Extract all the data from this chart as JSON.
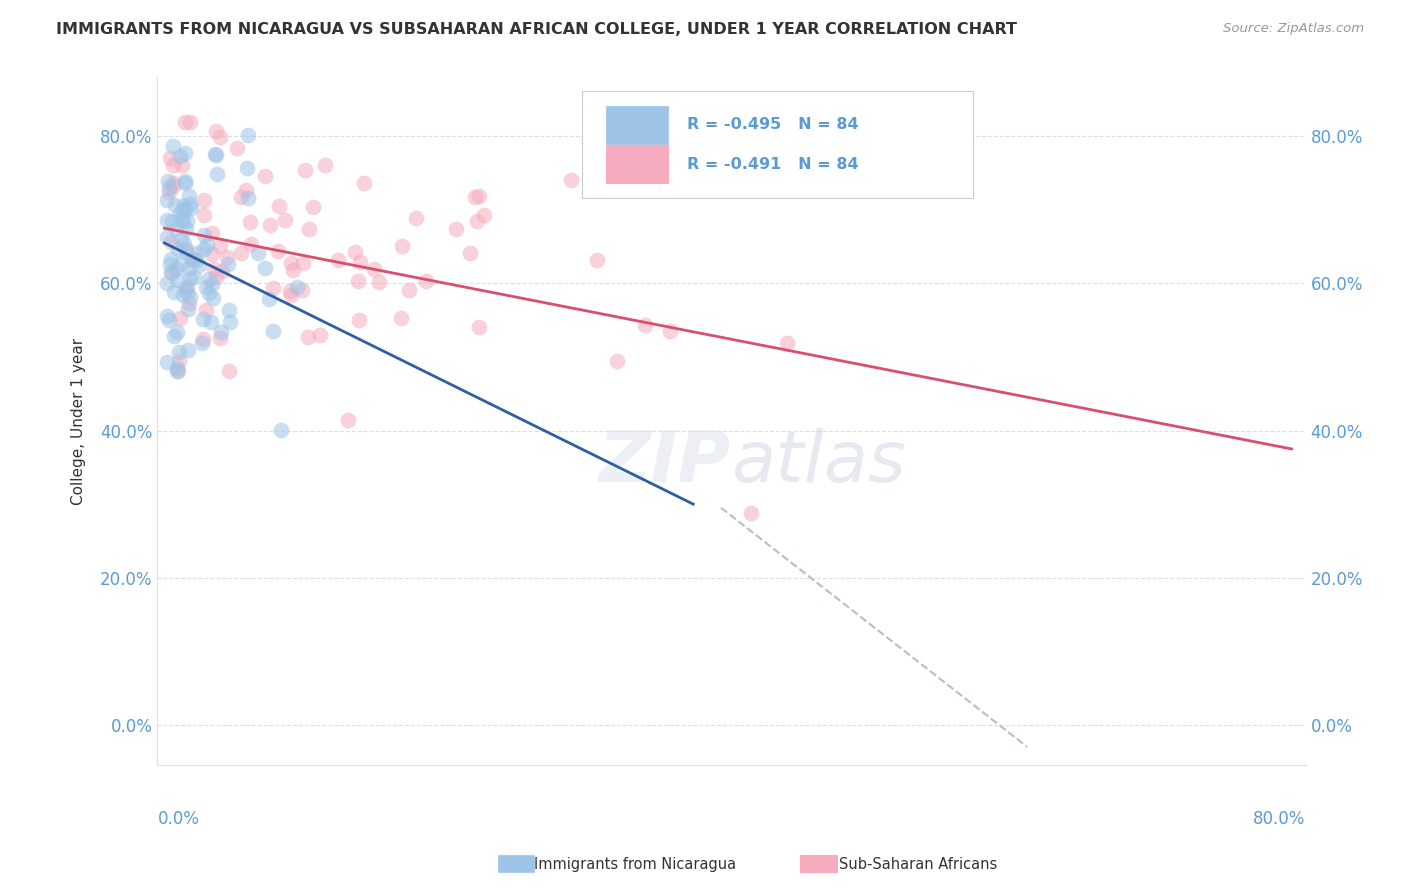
{
  "title": "IMMIGRANTS FROM NICARAGUA VS SUBSAHARAN AFRICAN COLLEGE, UNDER 1 YEAR CORRELATION CHART",
  "source": "Source: ZipAtlas.com",
  "ylabel": "College, Under 1 year",
  "legend_blue_label": "Immigrants from Nicaragua",
  "legend_pink_label": "Sub-Saharan Africans",
  "legend_blue_R": "R = -0.495",
  "legend_blue_N": "N = 84",
  "legend_pink_R": "R = -0.491",
  "legend_pink_N": "N = 84",
  "watermark_zip": "ZIP",
  "watermark_atlas": "atlas",
  "blue_color": "#9DC3E6",
  "pink_color": "#F4ACBE",
  "blue_line_color": "#2E5FA3",
  "pink_line_color": "#D94F6E",
  "dashed_line_color": "#BBBBCC",
  "background_color": "#FFFFFF",
  "title_color": "#333333",
  "axis_label_color": "#333333",
  "tick_color": "#5B9BD5",
  "grid_color": "#DDDDEE",
  "xlim": [
    -0.005,
    0.82
  ],
  "ylim": [
    -0.055,
    0.88
  ],
  "xtick_vals": [
    0.0,
    0.2,
    0.4,
    0.6,
    0.8
  ],
  "ytick_vals": [
    0.0,
    0.2,
    0.4,
    0.6,
    0.8
  ],
  "blue_line_x": [
    0.0,
    0.38
  ],
  "blue_line_y": [
    0.655,
    0.3
  ],
  "pink_line_x": [
    0.0,
    0.81
  ],
  "pink_line_y": [
    0.675,
    0.375
  ],
  "dashed_line_x": [
    0.4,
    0.62
  ],
  "dashed_line_y": [
    0.295,
    -0.03
  ],
  "scatter_marker_size": 130,
  "scatter_alpha": 0.55
}
